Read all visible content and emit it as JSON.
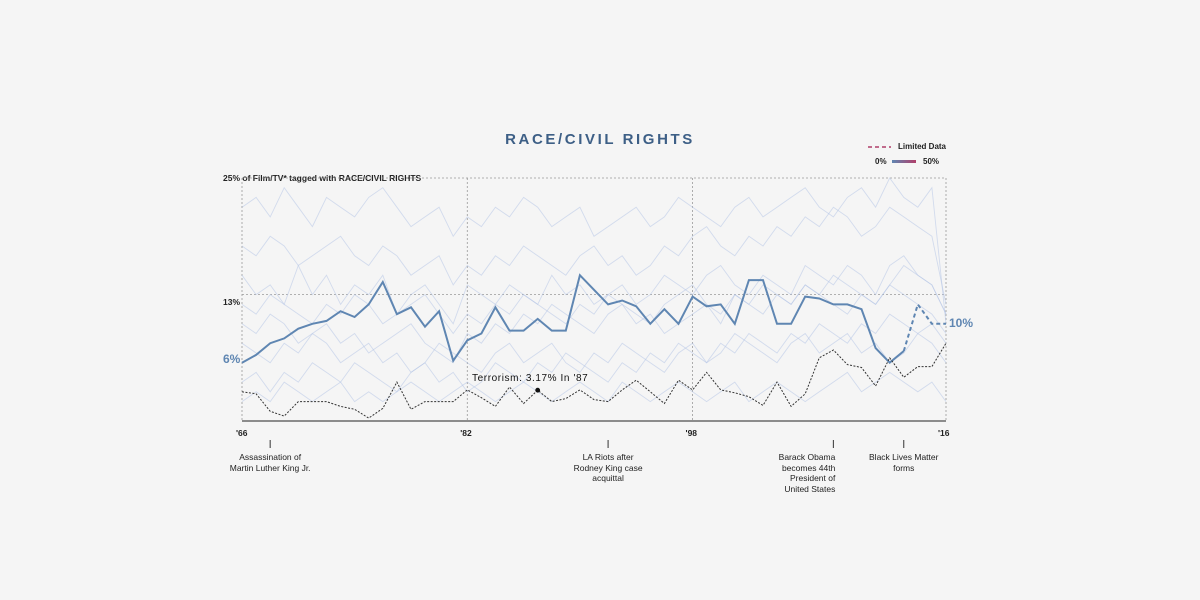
{
  "chart_data": {
    "type": "line",
    "title": "RACE/CIVIL RIGHTS",
    "legend": {
      "dashed_label": "Limited Data",
      "scale_min": "0%",
      "scale_max": "50%",
      "placement": "top-right"
    },
    "y_top_label": "25% of Film/TV* tagged with RACE/CIVIL RIGHTS",
    "y_mid_label": "13%",
    "ylim": [
      0,
      25
    ],
    "xlim": [
      1966,
      2016
    ],
    "x_ticks": [
      {
        "year": 1966,
        "label": "'66"
      },
      {
        "year": 1982,
        "label": "'82"
      },
      {
        "year": 1998,
        "label": "'98"
      },
      {
        "year": 2016,
        "label": "'16"
      }
    ],
    "start_label": "6%",
    "end_label": "10%",
    "annotation": {
      "text": "Terrorism: 3.17% In '87",
      "year": 1987,
      "value": 3.17
    },
    "events": [
      {
        "year": 1968,
        "text": "Assassination of Martin Luther King Jr.",
        "align": "center"
      },
      {
        "year": 1992,
        "text": "LA Riots after Rodney King case acquittal",
        "align": "center"
      },
      {
        "year": 2008,
        "text": "Barack Obama becomes 44th President of United States",
        "align": "right"
      },
      {
        "year": 2013,
        "text": "Black Lives Matter forms",
        "align": "center"
      }
    ],
    "x": [
      1966,
      1967,
      1968,
      1969,
      1970,
      1971,
      1972,
      1973,
      1974,
      1975,
      1976,
      1977,
      1978,
      1979,
      1980,
      1981,
      1982,
      1983,
      1984,
      1985,
      1986,
      1987,
      1988,
      1989,
      1990,
      1991,
      1992,
      1993,
      1994,
      1995,
      1996,
      1997,
      1998,
      1999,
      2000,
      2001,
      2002,
      2003,
      2004,
      2005,
      2006,
      2007,
      2008,
      2009,
      2010,
      2011,
      2012,
      2013,
      2014,
      2015,
      2016
    ],
    "series": [
      {
        "highlight": true,
        "color": "#5f86b2",
        "values": [
          6.0,
          6.8,
          8.0,
          8.5,
          9.5,
          10.0,
          10.3,
          11.3,
          10.7,
          12.0,
          14.3,
          11.0,
          11.7,
          9.7,
          11.3,
          6.2,
          8.3,
          9.0,
          11.7,
          9.3,
          9.3,
          10.5,
          9.3,
          9.3,
          15.0,
          13.5,
          12.0,
          12.4,
          11.8,
          10.0,
          11.5,
          10.0,
          12.8,
          11.8,
          12.0,
          10.0,
          14.5,
          14.5,
          10.0,
          10.0,
          12.8,
          12.6,
          12.0,
          12.0,
          11.5,
          7.5,
          6.0,
          7.2,
          12.0,
          10.0,
          10.0
        ],
        "dashed_from": 2013
      },
      {
        "highlight": true,
        "color": "#333333",
        "values": [
          3.0,
          2.8,
          1.0,
          0.5,
          2.0,
          2.0,
          2.0,
          1.5,
          1.2,
          0.3,
          1.3,
          4.0,
          1.2,
          2.0,
          2.0,
          2.0,
          3.2,
          2.4,
          1.5,
          3.5,
          1.8,
          3.17,
          2.0,
          2.3,
          3.2,
          2.2,
          2.0,
          3.2,
          4.2,
          3.0,
          1.8,
          4.2,
          3.2,
          5.0,
          3.2,
          2.9,
          2.5,
          1.6,
          4.0,
          1.5,
          2.8,
          6.5,
          7.3,
          5.8,
          5.5,
          3.6,
          6.5,
          4.5,
          5.6,
          5.6,
          8.0
        ]
      },
      {
        "values": [
          15,
          13,
          14,
          12,
          16,
          13,
          15,
          12,
          14,
          13,
          15,
          11,
          13,
          14,
          12,
          10,
          14,
          13,
          12,
          14,
          13,
          12,
          15,
          13,
          14,
          12,
          13,
          14,
          12,
          13,
          15,
          14,
          13,
          15,
          16,
          14,
          13,
          15,
          14,
          13,
          16,
          15,
          14,
          16,
          15,
          13,
          16,
          17,
          15,
          14,
          11
        ]
      },
      {
        "values": [
          22,
          23,
          21,
          24,
          22,
          20,
          23,
          22,
          21,
          23,
          24,
          22,
          20,
          21,
          22,
          19,
          21,
          20,
          22,
          21,
          23,
          22,
          20,
          21,
          22,
          19,
          20,
          21,
          22,
          20,
          21,
          23,
          22,
          21,
          20,
          22,
          23,
          21,
          22,
          23,
          24,
          22,
          21,
          23,
          24,
          22,
          25,
          23,
          22,
          24,
          10
        ]
      },
      {
        "values": [
          10,
          9,
          11,
          10,
          8,
          9,
          10,
          8,
          9,
          7,
          8,
          9,
          10,
          8,
          7,
          6,
          9,
          8,
          10,
          9,
          11,
          10,
          12,
          11,
          10,
          9,
          11,
          12,
          10,
          11,
          9,
          10,
          11,
          12,
          10,
          13,
          12,
          11,
          13,
          12,
          14,
          13,
          12,
          11,
          13,
          12,
          14,
          13,
          12,
          11,
          9
        ]
      },
      {
        "values": [
          2,
          3,
          2,
          4,
          3,
          2,
          3,
          4,
          2,
          3,
          2,
          3,
          4,
          3,
          2,
          3,
          4,
          3,
          2,
          3,
          4,
          3,
          2,
          3,
          4,
          3,
          2,
          4,
          3,
          2,
          3,
          4,
          3,
          2,
          3,
          4,
          2,
          3,
          4,
          3,
          2,
          3,
          4,
          5,
          3,
          4,
          5,
          4,
          3,
          4,
          2
        ]
      },
      {
        "values": [
          8,
          7,
          6,
          8,
          7,
          9,
          8,
          6,
          7,
          8,
          6,
          7,
          5,
          6,
          8,
          7,
          6,
          5,
          7,
          8,
          6,
          7,
          8,
          6,
          5,
          7,
          6,
          8,
          7,
          6,
          5,
          7,
          8,
          6,
          7,
          9,
          8,
          7,
          6,
          8,
          9,
          7,
          8,
          9,
          7,
          8,
          6,
          7,
          9,
          8,
          6
        ]
      },
      {
        "values": [
          18,
          17,
          19,
          18,
          16,
          17,
          18,
          19,
          17,
          16,
          18,
          17,
          15,
          16,
          17,
          14,
          16,
          15,
          17,
          16,
          18,
          17,
          16,
          15,
          17,
          18,
          16,
          17,
          15,
          16,
          18,
          17,
          19,
          20,
          18,
          17,
          19,
          18,
          20,
          19,
          21,
          20,
          22,
          21,
          19,
          20,
          22,
          21,
          20,
          19,
          12
        ]
      },
      {
        "values": [
          4,
          5,
          3,
          5,
          4,
          6,
          5,
          4,
          6,
          5,
          4,
          3,
          5,
          6,
          4,
          5,
          3,
          4,
          6,
          5,
          4,
          6,
          5,
          7,
          6,
          5,
          4,
          6,
          5,
          7,
          6,
          8,
          7,
          6,
          8,
          7,
          9,
          8,
          7,
          9,
          8,
          10,
          9,
          8,
          10,
          9,
          11,
          10,
          9,
          10,
          8
        ]
      },
      {
        "values": [
          12,
          11,
          13,
          12,
          11,
          10,
          12,
          11,
          13,
          12,
          10,
          11,
          12,
          13,
          11,
          9,
          11,
          10,
          12,
          11,
          13,
          12,
          11,
          10,
          12,
          11,
          13,
          12,
          11,
          10,
          12,
          13,
          14,
          12,
          11,
          13,
          12,
          14,
          13,
          12,
          14,
          13,
          15,
          14,
          13,
          12,
          14,
          16,
          15,
          14,
          11
        ]
      }
    ]
  }
}
